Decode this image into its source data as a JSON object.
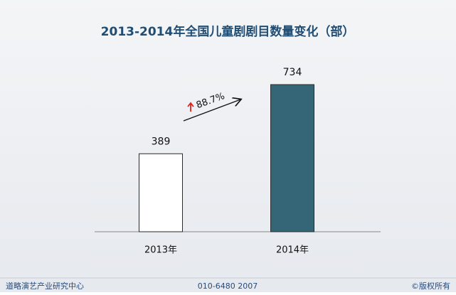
{
  "chart_data": {
    "type": "bar",
    "title": "2013-2014年全国儿童剧剧目数量变化（部）",
    "categories": [
      "2013年",
      "2014年"
    ],
    "values": [
      389,
      734
    ],
    "colors": [
      "#ffffff",
      "#346678"
    ],
    "annotation": "88.7%"
  },
  "footer": {
    "left": "道略演艺产业研究中心",
    "center": "010-6480 2007",
    "right": "©版权所有"
  }
}
